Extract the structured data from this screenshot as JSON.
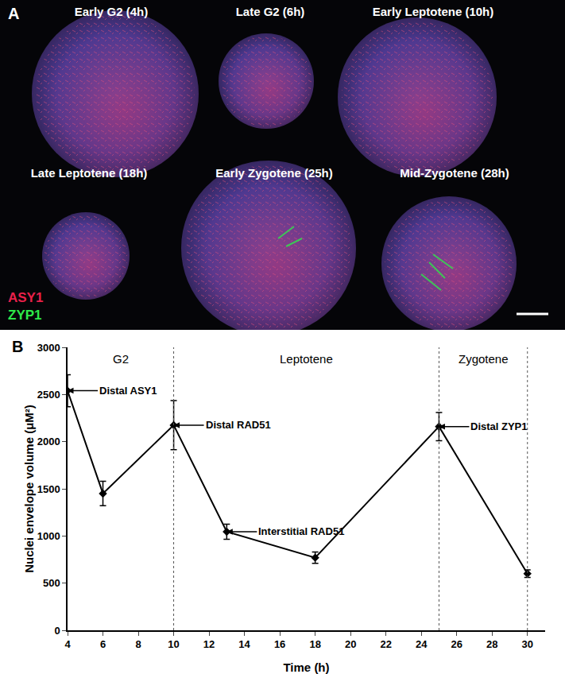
{
  "panel_a": {
    "label": "A",
    "images": [
      {
        "label": "Early G2 (4h)"
      },
      {
        "label": "Late G2 (6h)"
      },
      {
        "label": "Early Leptotene (10h)"
      },
      {
        "label": "Late Leptotene (18h)"
      },
      {
        "label": "Early Zygotene (25h)"
      },
      {
        "label": "Mid-Zygotene (28h)"
      }
    ],
    "legend": [
      {
        "text": "ASY1",
        "color": "#e8204a"
      },
      {
        "text": "ZYP1",
        "color": "#2ee84a"
      }
    ]
  },
  "chart_data": {
    "type": "line",
    "panel_label": "B",
    "x": [
      4,
      6,
      10,
      13,
      18,
      25,
      30
    ],
    "values": [
      2540,
      1450,
      2175,
      1045,
      770,
      2160,
      600
    ],
    "errors": [
      170,
      130,
      260,
      80,
      60,
      150,
      40
    ],
    "color": "#000000",
    "marker": "diamond",
    "line_style": "solid",
    "xlabel": "Time (h)",
    "ylabel": "Nuclei envelope volume (μM²)",
    "xlim": [
      4,
      31
    ],
    "xticks": [
      4,
      6,
      8,
      10,
      12,
      14,
      16,
      18,
      20,
      22,
      24,
      26,
      28,
      30
    ],
    "ylim": [
      0,
      3000
    ],
    "yticks": [
      0,
      500,
      1000,
      1500,
      2000,
      2500,
      3000
    ],
    "grid": false,
    "phases": [
      {
        "label": "G2",
        "start": 4,
        "end": 10
      },
      {
        "label": "Leptotene",
        "start": 10,
        "end": 25
      },
      {
        "label": "Zygotene",
        "start": 25,
        "end": 30
      }
    ],
    "annotations": [
      {
        "text": "Distal ASY1",
        "x": 4,
        "y": 2540
      },
      {
        "text": "Distal RAD51",
        "x": 10,
        "y": 2175
      },
      {
        "text": "Interstitial RAD51",
        "x": 13,
        "y": 1045
      },
      {
        "text": "Distal ZYP1",
        "x": 25,
        "y": 2160
      }
    ]
  }
}
